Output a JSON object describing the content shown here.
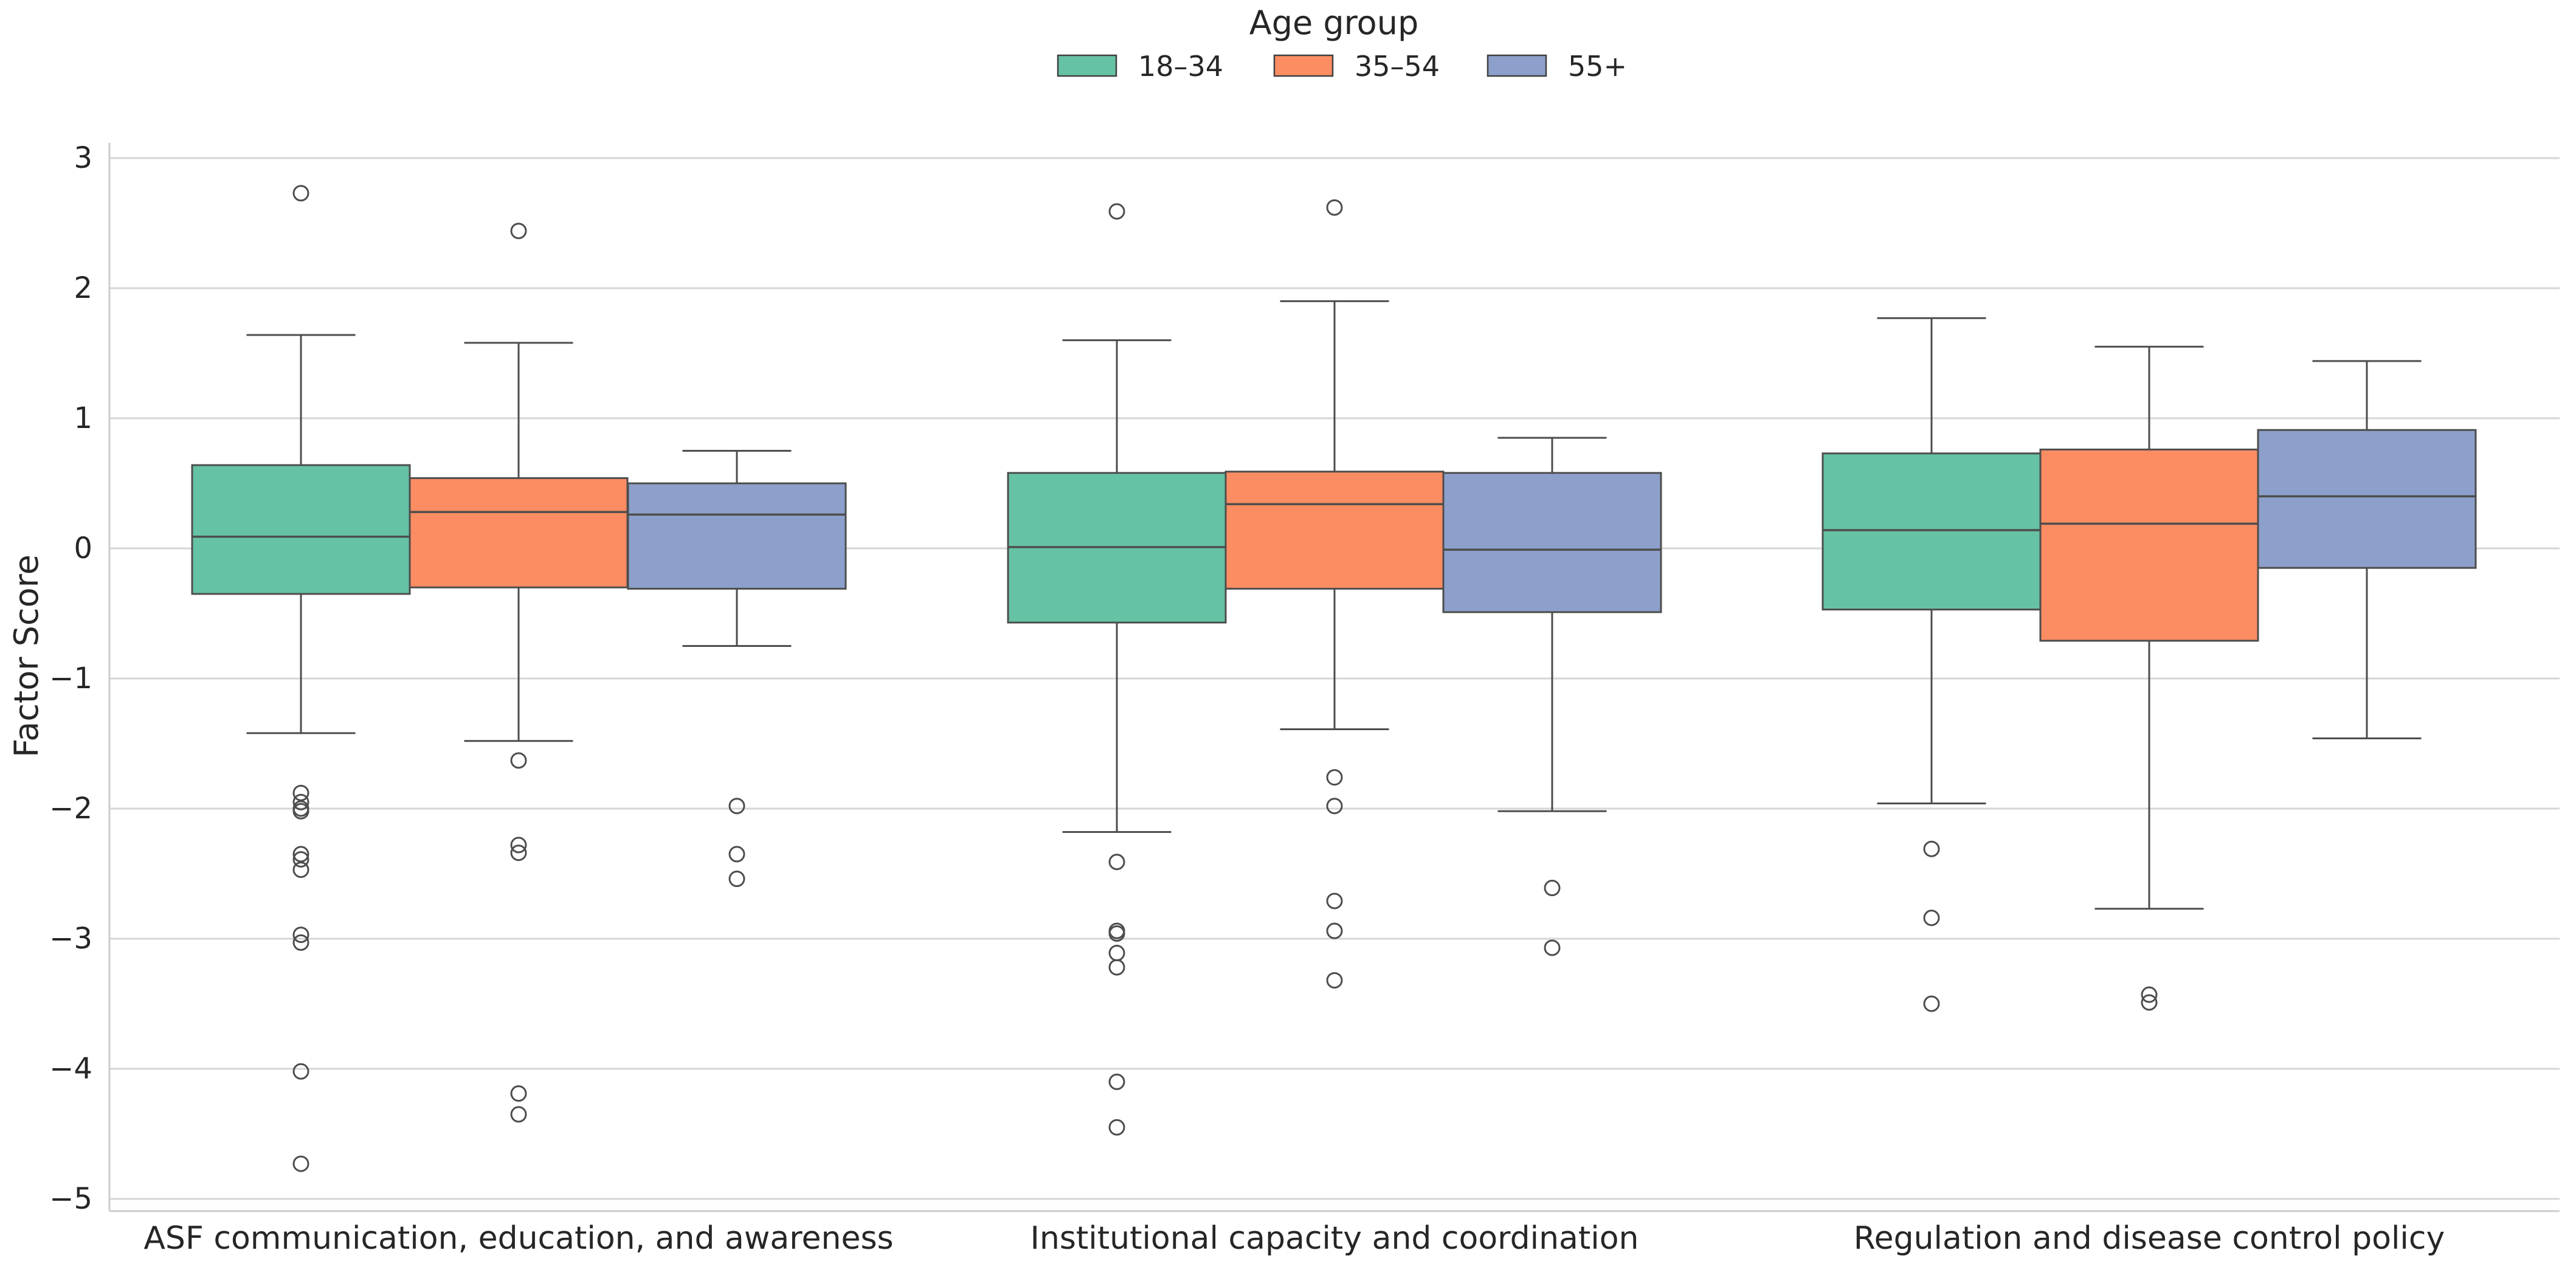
{
  "chart_data": {
    "type": "box",
    "title": "",
    "xlabel": "",
    "ylabel": "Factor Score",
    "ylim": [
      -5.1,
      3.1
    ],
    "yticks": [
      3,
      2,
      1,
      0,
      -1,
      -2,
      -3,
      -4,
      -5
    ],
    "ytick_labels": [
      "3",
      "2",
      "1",
      "0",
      "−1",
      "−2",
      "−3",
      "−4",
      "−5"
    ],
    "grid": "horizontal",
    "categories": [
      "ASF communication, education, and awareness",
      "Institutional capacity and coordination",
      "Regulation and disease control policy"
    ],
    "legend": {
      "title": "Age group",
      "placement": "top-center"
    },
    "series": [
      {
        "name": "18–34",
        "color": "#66c2a5",
        "boxes": [
          {
            "whisker_low": -1.42,
            "q1": -0.35,
            "median": 0.09,
            "q3": 0.64,
            "whisker_high": 1.64,
            "outliers": [
              2.73,
              -1.88,
              -1.95,
              -2.0,
              -2.02,
              -2.35,
              -2.39,
              -2.47,
              -2.97,
              -3.03,
              -4.02,
              -4.73
            ]
          },
          {
            "whisker_low": -2.18,
            "q1": -0.57,
            "median": 0.01,
            "q3": 0.58,
            "whisker_high": 1.6,
            "outliers": [
              2.59,
              -2.41,
              -2.94,
              -2.96,
              -3.11,
              -3.22,
              -4.1,
              -4.45
            ]
          },
          {
            "whisker_low": -1.96,
            "q1": -0.47,
            "median": 0.14,
            "q3": 0.73,
            "whisker_high": 1.77,
            "outliers": [
              -2.31,
              -2.84,
              -3.5
            ]
          }
        ]
      },
      {
        "name": "35–54",
        "color": "#fc8d62",
        "boxes": [
          {
            "whisker_low": -1.48,
            "q1": -0.3,
            "median": 0.28,
            "q3": 0.54,
            "whisker_high": 1.58,
            "outliers": [
              2.44,
              -1.63,
              -2.28,
              -2.34,
              -4.19,
              -4.35
            ]
          },
          {
            "whisker_low": -1.39,
            "q1": -0.31,
            "median": 0.34,
            "q3": 0.59,
            "whisker_high": 1.9,
            "outliers": [
              2.62,
              -1.76,
              -1.98,
              -2.71,
              -2.94,
              -3.32
            ]
          },
          {
            "whisker_low": -2.77,
            "q1": -0.71,
            "median": 0.19,
            "q3": 0.76,
            "whisker_high": 1.55,
            "outliers": [
              -3.43,
              -3.49
            ]
          }
        ]
      },
      {
        "name": "55+",
        "color": "#8da0cb",
        "boxes": [
          {
            "whisker_low": -0.75,
            "q1": -0.31,
            "median": 0.26,
            "q3": 0.5,
            "whisker_high": 0.75,
            "outliers": [
              -1.98,
              -2.35,
              -2.54
            ]
          },
          {
            "whisker_low": -2.02,
            "q1": -0.49,
            "median": -0.01,
            "q3": 0.58,
            "whisker_high": 0.85,
            "outliers": [
              -2.61,
              -3.07
            ]
          },
          {
            "whisker_low": -1.46,
            "q1": -0.15,
            "median": 0.4,
            "q3": 0.91,
            "whisker_high": 1.44,
            "outliers": []
          }
        ]
      }
    ]
  }
}
